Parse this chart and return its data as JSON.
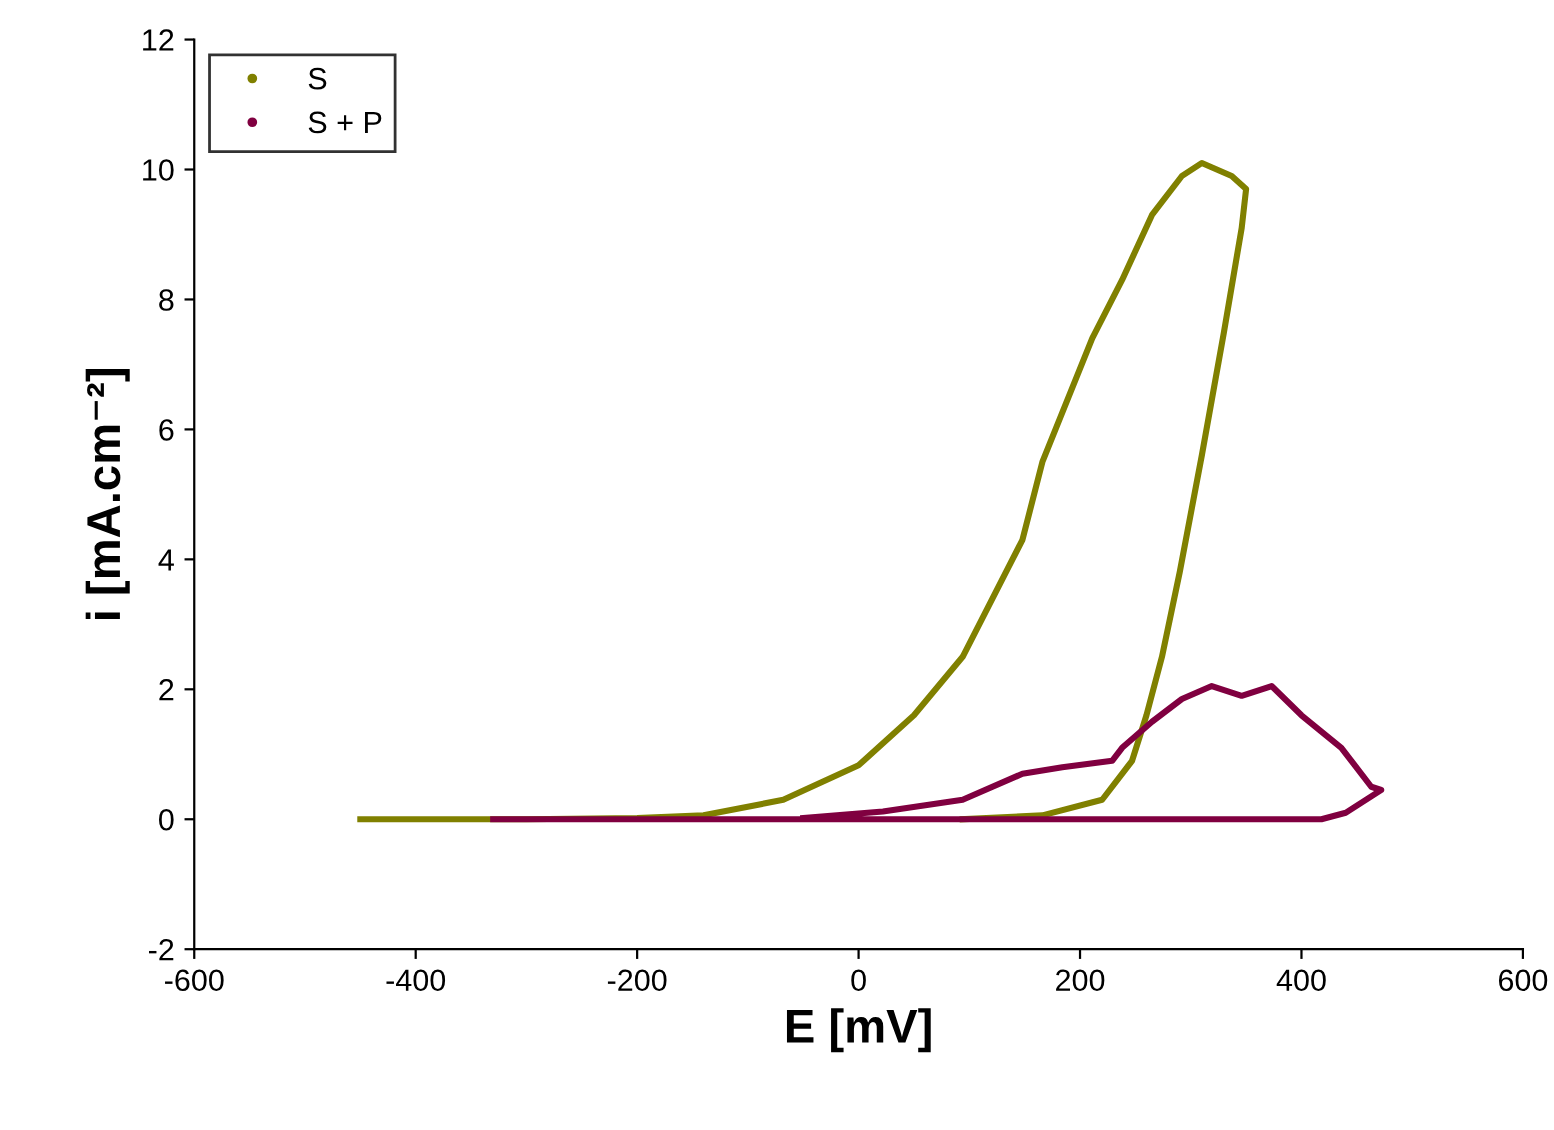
{
  "chart_data": {
    "type": "line",
    "xlabel": "E [mV]",
    "ylabel": "i [mA.cm⁻²]",
    "xlim": [
      -600,
      600
    ],
    "xticks": [
      -600,
      -400,
      -200,
      0,
      200,
      400,
      600
    ],
    "ylim": [
      -2,
      12
    ],
    "yticks": [
      -2,
      0,
      2,
      4,
      6,
      8,
      10,
      12
    ],
    "grid": false,
    "legend": "top left",
    "marker": "none",
    "line_style": "solid",
    "series": [
      {
        "name": "S",
        "color": "#808000",
        "x": [
          -450,
          -300,
          -200,
          -140,
          -68,
          0,
          50,
          94,
          148,
          166,
          211,
          238,
          265,
          292,
          310,
          337,
          350,
          346,
          330,
          310,
          290,
          274,
          260,
          247,
          220,
          166,
          94
        ],
        "values": [
          0,
          0,
          0.02,
          0.06,
          0.3,
          0.83,
          1.6,
          2.5,
          4.3,
          5.5,
          7.4,
          8.3,
          9.3,
          9.9,
          10.1,
          9.9,
          9.7,
          9.1,
          7.5,
          5.6,
          3.8,
          2.5,
          1.6,
          0.9,
          0.3,
          0.06,
          0
        ]
      },
      {
        "name": "S + P",
        "color": "#800040",
        "x": [
          -50,
          22,
          94,
          148,
          184,
          229,
          238,
          265,
          292,
          319,
          346,
          373,
          400,
          436,
          463,
          472,
          440,
          418,
          300,
          100,
          -100,
          -330
        ],
        "values": [
          0.02,
          0.12,
          0.3,
          0.7,
          0.8,
          0.9,
          1.1,
          1.5,
          1.85,
          2.05,
          1.9,
          2.05,
          1.6,
          1.1,
          0.5,
          0.45,
          0.1,
          0,
          0,
          0,
          0,
          0
        ]
      }
    ]
  }
}
